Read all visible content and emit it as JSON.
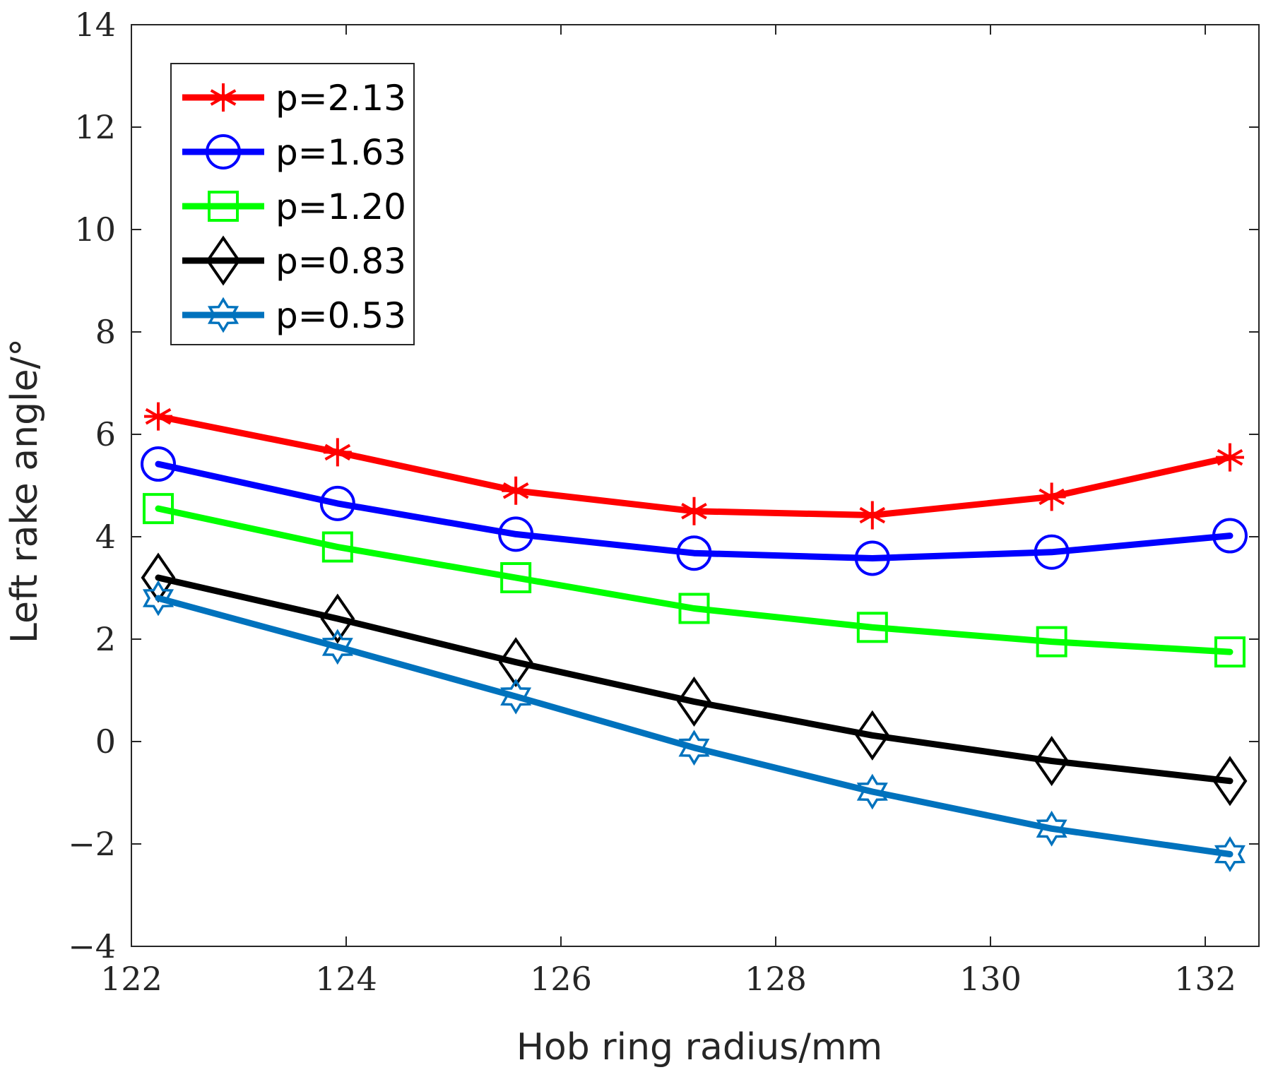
{
  "chart_data": {
    "type": "line",
    "title": "",
    "xlabel": "Hob ring radius/mm",
    "ylabel": "Left rake angle/°",
    "xlim": [
      122,
      132.5
    ],
    "ylim": [
      -4,
      14
    ],
    "xticks": [
      122,
      124,
      126,
      128,
      130,
      132
    ],
    "yticks": [
      -4,
      -2,
      0,
      2,
      4,
      6,
      8,
      10,
      12,
      14
    ],
    "xtick_labels": [
      "122",
      "124",
      "126",
      "128",
      "130",
      "132"
    ],
    "ytick_labels": [
      "−4",
      "−2",
      "0",
      "2",
      "4",
      "6",
      "8",
      "10",
      "12",
      "14"
    ],
    "grid": false,
    "legend_position": "top-left",
    "x": [
      122.25,
      123.92,
      125.58,
      127.24,
      128.9,
      130.57,
      132.23
    ],
    "series": [
      {
        "name": "p=2.13",
        "label": "p=2.13",
        "color": "#ff0000",
        "marker": "asterisk",
        "values": [
          6.35,
          5.65,
          4.9,
          4.5,
          4.42,
          4.78,
          5.55
        ]
      },
      {
        "name": "p=1.63",
        "label": "p=1.63",
        "color": "#0000ff",
        "marker": "circle",
        "values": [
          5.42,
          4.65,
          4.05,
          3.68,
          3.58,
          3.7,
          4.02
        ]
      },
      {
        "name": "p=1.20",
        "label": "p=1.20",
        "color": "#00ff00",
        "marker": "square",
        "values": [
          4.55,
          3.8,
          3.2,
          2.6,
          2.23,
          1.95,
          1.75
        ]
      },
      {
        "name": "p=0.83",
        "label": "p=0.83",
        "color": "#000000",
        "marker": "diamond",
        "values": [
          3.2,
          2.4,
          1.55,
          0.78,
          0.12,
          -0.38,
          -0.77
        ]
      },
      {
        "name": "p=0.53",
        "label": "p=0.53",
        "color": "#0072bd",
        "marker": "hexagram",
        "values": [
          2.8,
          1.85,
          0.88,
          -0.12,
          -0.98,
          -1.7,
          -2.2
        ]
      }
    ]
  }
}
